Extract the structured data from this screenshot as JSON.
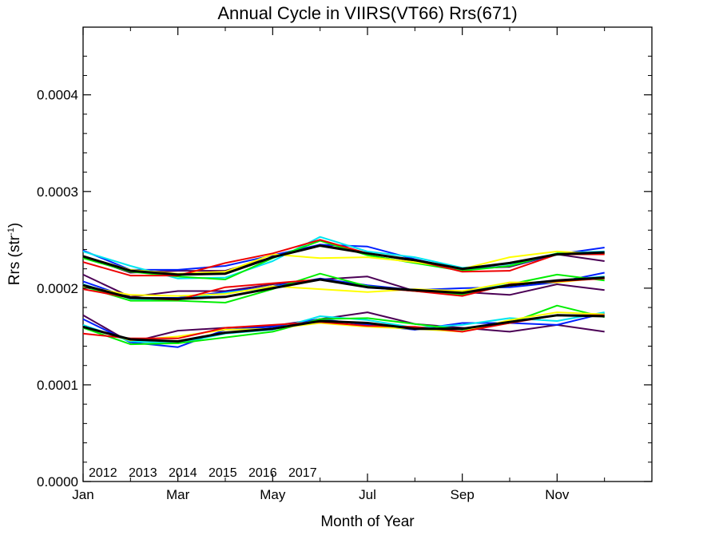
{
  "chart_data": {
    "type": "line",
    "title": "Annual Cycle in VIIRS(VT66) Rrs(671)",
    "xlabel": "Month of Year",
    "ylabel_main": "Rrs (str",
    "ylabel_sup": "-1",
    "ylabel_close": ")",
    "xlim": [
      1,
      13
    ],
    "ylim": [
      0,
      0.00047
    ],
    "x_ticks": [
      {
        "value": 1,
        "label": "Jan"
      },
      {
        "value": 3,
        "label": "Mar"
      },
      {
        "value": 5,
        "label": "May"
      },
      {
        "value": 7,
        "label": "Jul"
      },
      {
        "value": 9,
        "label": "Sep"
      },
      {
        "value": 11,
        "label": "Nov"
      }
    ],
    "y_ticks": [
      {
        "value": 0,
        "label": "0.0000"
      },
      {
        "value": 0.0001,
        "label": "0.0001"
      },
      {
        "value": 0.0002,
        "label": "0.0002"
      },
      {
        "value": 0.0003,
        "label": "0.0003"
      },
      {
        "value": 0.0004,
        "label": "0.0004"
      }
    ],
    "legend_position": "bottom-left",
    "x": [
      1,
      2,
      3,
      4,
      5,
      6,
      7,
      8,
      9,
      10,
      11,
      12
    ],
    "series": [
      {
        "name": "2012",
        "color": "#4b0055",
        "bands": [
          [
            0.000172,
            0.000144,
            0.000156,
            0.000159,
            0.000161,
            0.000168,
            0.000175,
            0.000163,
            0.000159,
            0.000155,
            0.000162,
            0.000155
          ],
          [
            0.000214,
            0.000191,
            0.000197,
            0.000197,
            0.000204,
            0.000209,
            0.000212,
            0.000197,
            0.000196,
            0.000193,
            0.000204,
            0.000198
          ],
          [
            0.000233,
            0.000216,
            0.000218,
            0.000218,
            0.000232,
            0.000245,
            0.000236,
            0.000228,
            0.00022,
            0.000222,
            0.000235,
            0.000228
          ]
        ]
      },
      {
        "name": "2013",
        "color": "#0020ff",
        "bands": [
          [
            0.000168,
            0.000144,
            0.000139,
            0.000157,
            0.00016,
            0.000168,
            0.000162,
            0.000157,
            0.000164,
            0.000164,
            0.000162,
            0.000174
          ],
          [
            0.000207,
            0.00019,
            0.00019,
            0.000196,
            0.000202,
            0.00021,
            0.000203,
            0.000198,
            0.0002,
            0.000201,
            0.000206,
            0.000216
          ],
          [
            0.000239,
            0.000219,
            0.000219,
            0.000223,
            0.000234,
            0.000245,
            0.000243,
            0.00023,
            0.000219,
            0.000223,
            0.000235,
            0.000242
          ]
        ]
      },
      {
        "name": "2014",
        "color": "#00e5ef",
        "bands": [
          [
            0.000162,
            0.000145,
            0.000143,
            0.000153,
            0.000157,
            0.000171,
            0.000167,
            0.000159,
            0.000162,
            0.000169,
            0.000166,
            0.000175
          ],
          [
            0.000204,
            0.000189,
            0.000188,
            0.000195,
            0.000201,
            0.000209,
            0.000201,
            0.000197,
            0.000196,
            0.000204,
            0.000208,
            0.000212
          ],
          [
            0.000238,
            0.000223,
            0.00021,
            0.000211,
            0.000228,
            0.000253,
            0.000238,
            0.000232,
            0.000221,
            0.000225,
            0.000236,
            0.000238
          ]
        ]
      },
      {
        "name": "2015",
        "color": "#00ee00",
        "bands": [
          [
            0.000159,
            0.000142,
            0.000143,
            0.000149,
            0.000155,
            0.000168,
            0.000169,
            0.000163,
            0.000157,
            0.000164,
            0.000182,
            0.00017
          ],
          [
            0.000202,
            0.000187,
            0.000187,
            0.000185,
            0.000199,
            0.000215,
            0.000202,
            0.000197,
            0.000193,
            0.000204,
            0.000214,
            0.000208
          ],
          [
            0.000231,
            0.000217,
            0.000212,
            0.000209,
            0.000231,
            0.000249,
            0.000234,
            0.000226,
            0.000218,
            0.000223,
            0.000236,
            0.000236
          ]
        ]
      },
      {
        "name": "2016",
        "color": "#ffff00",
        "bands": [
          [
            0.00016,
            0.000146,
            0.00015,
            0.000157,
            0.000158,
            0.000164,
            0.00016,
            0.000158,
            0.000155,
            0.000167,
            0.000175,
            0.000173
          ],
          [
            0.000202,
            0.000193,
            0.000192,
            0.000194,
            0.000202,
            0.000199,
            0.000196,
            0.000199,
            0.000197,
            0.000206,
            0.000206,
            0.000211
          ],
          [
            0.000233,
            0.000219,
            0.000215,
            0.000217,
            0.000235,
            0.000231,
            0.000232,
            0.000227,
            0.00022,
            0.000232,
            0.000238,
            0.000235
          ]
        ]
      },
      {
        "name": "2017",
        "color": "#ee0000",
        "bands": [
          [
            0.000153,
            0.000148,
            0.000148,
            0.000159,
            0.000162,
            0.000165,
            0.000161,
            0.00016,
            0.000155,
            0.000164,
            0.000172,
            0.000172
          ],
          [
            0.000199,
            0.00019,
            0.000188,
            0.000201,
            0.000205,
            0.000209,
            0.000201,
            0.000197,
            0.000192,
            0.000204,
            0.000207,
            0.00021
          ],
          [
            0.000227,
            0.000213,
            0.000213,
            0.000226,
            0.000236,
            0.00025,
            0.000236,
            0.000229,
            0.000217,
            0.000218,
            0.000235,
            0.000235
          ]
        ]
      },
      {
        "name": "",
        "color": "#000000",
        "bands": [
          [
            0.00016,
            0.000147,
            0.000145,
            0.000154,
            0.000158,
            0.000166,
            0.000164,
            0.000158,
            0.000158,
            0.000165,
            0.000172,
            0.000171
          ],
          [
            0.000203,
            0.00019,
            0.000189,
            0.000191,
            0.0002,
            0.000209,
            0.000201,
            0.000198,
            0.000195,
            0.000203,
            0.000208,
            0.000211
          ],
          [
            0.000233,
            0.000218,
            0.000214,
            0.000215,
            0.000232,
            0.000244,
            0.000236,
            0.000229,
            0.00022,
            0.000226,
            0.000235,
            0.000237
          ]
        ]
      }
    ]
  }
}
